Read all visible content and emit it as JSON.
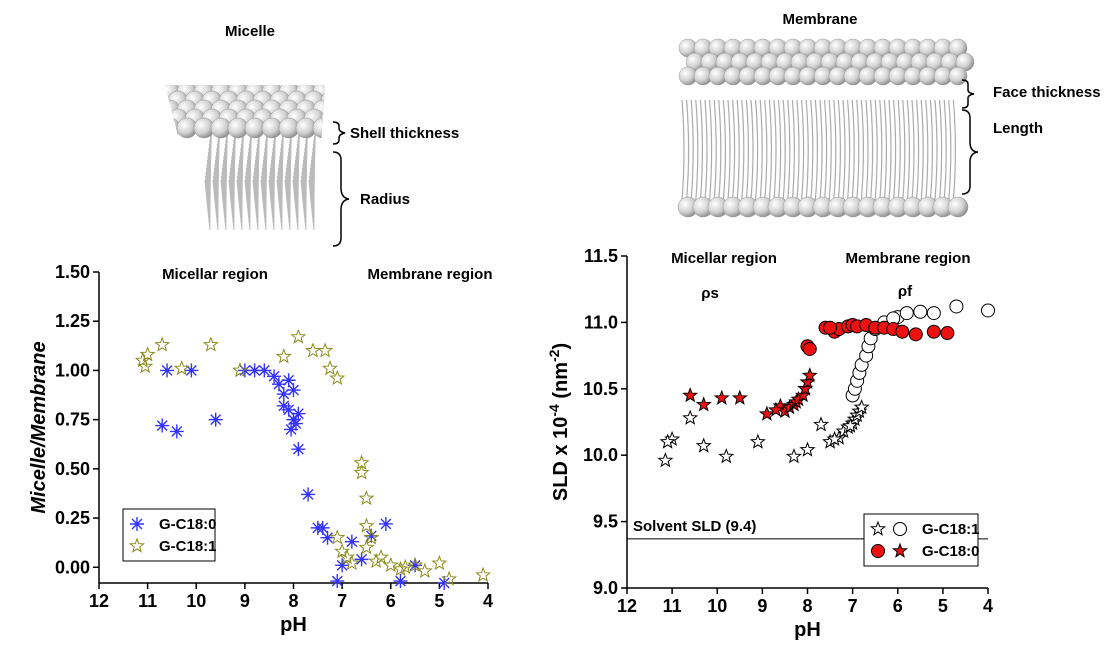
{
  "illustrations": {
    "micelle": {
      "title": "Micelle",
      "labels": [
        "Shell thickness",
        "Radius"
      ]
    },
    "membrane": {
      "title": "Membrane",
      "labels": [
        "Face thickness",
        "Length"
      ]
    }
  },
  "chart_data": [
    {
      "type": "scatter",
      "xlabel": "pH",
      "ylabel": "Micelle/Membrane",
      "xlim": [
        12,
        4
      ],
      "xticks": [
        12,
        11,
        10,
        9,
        8,
        7,
        6,
        5,
        4
      ],
      "ylim": [
        -0.08,
        1.5
      ],
      "yticks": [
        {
          "value": 0,
          "label": "0.00"
        },
        {
          "value": 0.25,
          "label": "0.25"
        },
        {
          "value": 0.5,
          "label": "0.50"
        },
        {
          "value": 0.75,
          "label": "0.75"
        },
        {
          "value": 1,
          "label": "1.00"
        },
        {
          "value": 1.25,
          "label": "1.25"
        },
        {
          "value": 1.5,
          "label": "1.50"
        }
      ],
      "annotations": [
        "Micellar region",
        "Membrane region"
      ],
      "legend": "lower left",
      "series": [
        {
          "name": "G-C18:0",
          "color": "#3333ff",
          "marker": "asterisk",
          "fill": "none",
          "x": [
            10.6,
            10.1,
            10.7,
            10.4,
            9.6,
            9.0,
            8.8,
            8.6,
            8.4,
            8.3,
            8.2,
            8.1,
            8.0,
            8.2,
            8.1,
            8.0,
            7.95,
            7.9,
            8.05,
            7.9,
            7.7,
            7.5,
            7.4,
            7.3,
            7.1,
            7.0,
            6.8,
            6.6,
            6.4,
            6.1,
            5.5,
            4.9,
            5.8
          ],
          "values": [
            1.0,
            1.0,
            0.72,
            0.69,
            0.75,
            1.0,
            1.0,
            1.0,
            0.97,
            0.93,
            0.88,
            0.95,
            0.9,
            0.82,
            0.8,
            0.75,
            0.73,
            0.78,
            0.7,
            0.6,
            0.37,
            0.2,
            0.2,
            0.15,
            -0.07,
            0.01,
            0.13,
            0.04,
            0.16,
            0.22,
            0.01,
            -0.08,
            -0.07
          ]
        },
        {
          "name": "G-C18:1",
          "color": "#8c8c1e",
          "marker": "star",
          "fill": "none",
          "x": [
            11.0,
            11.1,
            11.05,
            10.7,
            10.3,
            9.7,
            9.1,
            8.2,
            7.9,
            7.6,
            7.35,
            7.25,
            7.1,
            6.6,
            6.6,
            6.5,
            6.5,
            6.4,
            7.1,
            7.0,
            6.9,
            6.8,
            6.5,
            6.2,
            6.0,
            5.8,
            5.5,
            5.3,
            5.0,
            4.8,
            4.1,
            6.3,
            5.7
          ],
          "values": [
            1.08,
            1.05,
            1.02,
            1.13,
            1.01,
            1.13,
            1.0,
            1.07,
            1.17,
            1.1,
            1.1,
            1.01,
            0.96,
            0.53,
            0.48,
            0.35,
            0.21,
            0.15,
            0.15,
            0.08,
            0.05,
            0.02,
            0.1,
            0.05,
            0.01,
            -0.01,
            0.01,
            -0.02,
            0.02,
            -0.06,
            -0.04,
            0.03,
            0.0
          ]
        }
      ]
    },
    {
      "type": "scatter",
      "xlabel": "pH",
      "ylabel": [
        "SLD x 10",
        "-4",
        " (nm",
        "-2",
        ")"
      ],
      "xlim": [
        12,
        4
      ],
      "xticks": [
        12,
        11,
        10,
        9,
        8,
        7,
        6,
        5,
        4
      ],
      "ylim": [
        9.0,
        11.5
      ],
      "yticks": [
        {
          "value": 9,
          "label": "9.0"
        },
        {
          "value": 9.5,
          "label": "9.5"
        },
        {
          "value": 10,
          "label": "10.0"
        },
        {
          "value": 10.5,
          "label": "10.5"
        },
        {
          "value": 11,
          "label": "11.0"
        },
        {
          "value": 11.5,
          "label": "11.5"
        }
      ],
      "annotations": [
        "Micellar region",
        "Membrane region",
        "ρs",
        "ρf"
      ],
      "hline": {
        "value": 9.37,
        "label": "Solvent SLD (9.4)"
      },
      "legend": "lower right",
      "series": [
        {
          "name": "G-C18:1",
          "color": "#000000",
          "marker": "star",
          "fill": "#ffffff",
          "x": [
            11.0,
            11.1,
            11.15,
            10.6,
            10.3,
            9.8,
            9.1,
            8.3,
            8.0,
            7.7,
            7.5,
            7.3,
            7.2,
            7.1,
            7.0,
            6.95,
            6.9,
            6.85,
            6.8,
            7.4,
            7.05
          ],
          "values": [
            10.12,
            10.1,
            9.96,
            10.28,
            10.07,
            9.99,
            10.1,
            9.99,
            10.04,
            10.23,
            10.1,
            10.13,
            10.18,
            10.21,
            10.24,
            10.27,
            10.3,
            10.33,
            10.36,
            10.12,
            10.22
          ]
        },
        {
          "name": "G-C18:1",
          "color": "#000000",
          "marker": "circle",
          "fill": "#ffffff",
          "x": [
            7.0,
            6.95,
            6.9,
            6.85,
            6.8,
            6.7,
            6.65,
            6.6,
            6.5,
            6.3,
            6.0,
            5.8,
            5.5,
            5.2,
            4.7,
            4.0,
            6.1
          ],
          "values": [
            10.45,
            10.5,
            10.56,
            10.62,
            10.68,
            10.75,
            10.82,
            10.88,
            10.95,
            11.0,
            11.04,
            11.07,
            11.08,
            11.07,
            11.12,
            11.09,
            11.03
          ]
        },
        {
          "name": "G-C18:0",
          "color": "#000000",
          "marker": "circle",
          "fill": "#ee1111",
          "x": [
            8.0,
            7.95,
            7.4,
            7.3,
            7.1,
            7.0,
            6.9,
            6.7,
            6.5,
            6.3,
            6.1,
            5.9,
            5.6,
            5.2,
            4.9,
            7.6,
            7.5
          ],
          "values": [
            10.82,
            10.8,
            10.93,
            10.95,
            10.97,
            10.98,
            10.97,
            10.98,
            10.96,
            10.96,
            10.95,
            10.93,
            10.91,
            10.93,
            10.92,
            10.96,
            10.96
          ]
        },
        {
          "name": "G-C18:0",
          "color": "#000000",
          "marker": "star",
          "fill": "#ee1111",
          "x": [
            10.6,
            10.3,
            9.9,
            9.5,
            8.9,
            8.6,
            8.5,
            8.4,
            8.3,
            8.25,
            8.2,
            8.1,
            8.05,
            8.0,
            7.95,
            8.7
          ],
          "values": [
            10.45,
            10.38,
            10.43,
            10.43,
            10.31,
            10.37,
            10.33,
            10.36,
            10.38,
            10.4,
            10.42,
            10.45,
            10.5,
            10.55,
            10.6,
            10.34
          ]
        }
      ]
    }
  ]
}
